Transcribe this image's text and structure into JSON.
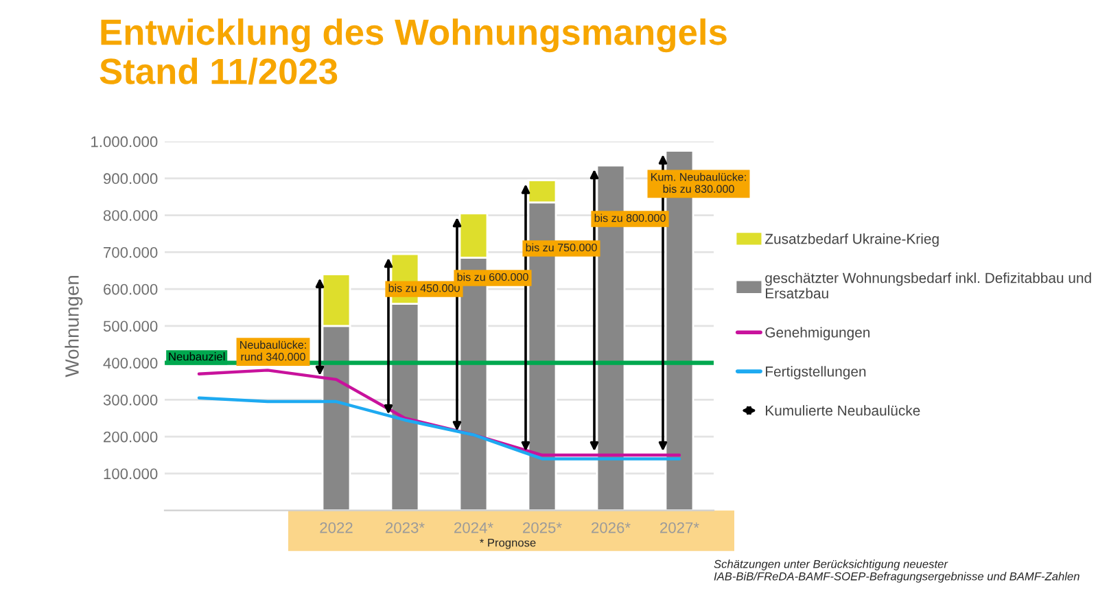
{
  "chart_data": {
    "type": "bar",
    "stacked": true,
    "title": "Entwicklung des Wohnungsmangels\nStand 11/2023",
    "ylabel": "Wohnungen",
    "categories": [
      null,
      null,
      "2022",
      "2023*",
      "2024*",
      "2025*",
      "2026*",
      "2027*"
    ],
    "series": [
      {
        "name": "geschätzter Wohnungsbedarf inkl. Defizitabbau und Ersatzbau",
        "color": "#878787",
        "values": [
          null,
          null,
          500000,
          560000,
          685000,
          835000,
          935000,
          975000
        ]
      },
      {
        "name": "Zusatzbedarf Ukraine-Krieg",
        "color": "#dede2c",
        "values": [
          null,
          null,
          140000,
          135000,
          120000,
          60000,
          null,
          null
        ]
      },
      {
        "name": "Genehmigungen",
        "type": "line",
        "color": "#c8129c",
        "values": [
          370000,
          380000,
          355000,
          250000,
          205000,
          150000,
          150000,
          150000
        ]
      },
      {
        "name": "Fertigstellungen",
        "type": "line",
        "color": "#1eaaf1",
        "values": [
          305000,
          295000,
          295000,
          245000,
          205000,
          140000,
          140000,
          140000
        ]
      }
    ],
    "ylim": [
      0,
      1000000
    ],
    "yticks": [
      {
        "value": 100000,
        "label": "100.000"
      },
      {
        "value": 200000,
        "label": "200.000"
      },
      {
        "value": 300000,
        "label": "300.000"
      },
      {
        "value": 400000,
        "label": "400.000"
      },
      {
        "value": 500000,
        "label": "500.000"
      },
      {
        "value": 600000,
        "label": "600.000"
      },
      {
        "value": 700000,
        "label": "700.000"
      },
      {
        "value": 800000,
        "label": "800.000"
      },
      {
        "value": 900000,
        "label": "900.000"
      },
      {
        "value": 1000000,
        "label": "1.000.000"
      }
    ],
    "grid": "y",
    "legend": "right",
    "ref_lines": [
      {
        "axis": "y",
        "value": 400000,
        "label": "Neubauziel",
        "color": "#00a84f"
      }
    ],
    "annotations": [
      "Neubaulücke:\nrund 340.000",
      "bis zu 450.000",
      "bis zu 600.000",
      "bis zu 750.000",
      "bis zu 800.000",
      "Kum. Neubaulücke:\nbis zu 830.000",
      "Kumulierte Neubaulücke",
      "* Prognose",
      "Schätzungen unter Berücksichtigung neuester IAB-BiB/FReDA-BAMF-SOEP-Befragungsergebnisse und BAMF-Zahlen"
    ]
  }
}
